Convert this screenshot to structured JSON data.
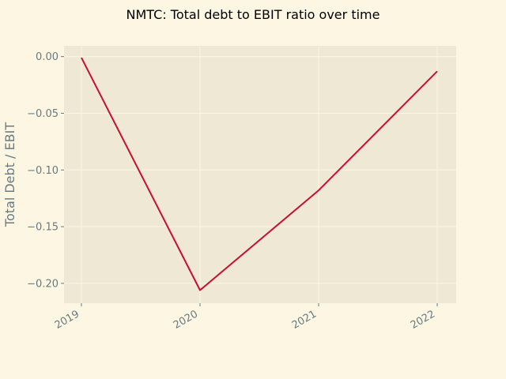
{
  "chart_data": {
    "type": "line",
    "title": "NMTC: Total debt to EBIT ratio over time",
    "xlabel": "",
    "ylabel": "Total Debt / EBIT",
    "categories": [
      "2019",
      "2020",
      "2021",
      "2022"
    ],
    "series": [
      {
        "values": [
          -0.001,
          -0.206,
          -0.118,
          -0.013
        ],
        "color": "#c8102e"
      }
    ],
    "ylim": [
      -0.2175,
      0.0095
    ],
    "yticks": [
      0.0,
      -0.05,
      -0.1,
      -0.15,
      -0.2
    ],
    "ytick_labels": [
      "0.00",
      "−0.05",
      "−0.10",
      "−0.15",
      "−0.20"
    ],
    "grid": true,
    "legend": "none",
    "colors": {
      "background": "#fdf6e3",
      "plot_area": "#eee8d5",
      "grid": "#fdf6e3",
      "tick_text": "#657b83",
      "line": "#c8102e"
    }
  }
}
